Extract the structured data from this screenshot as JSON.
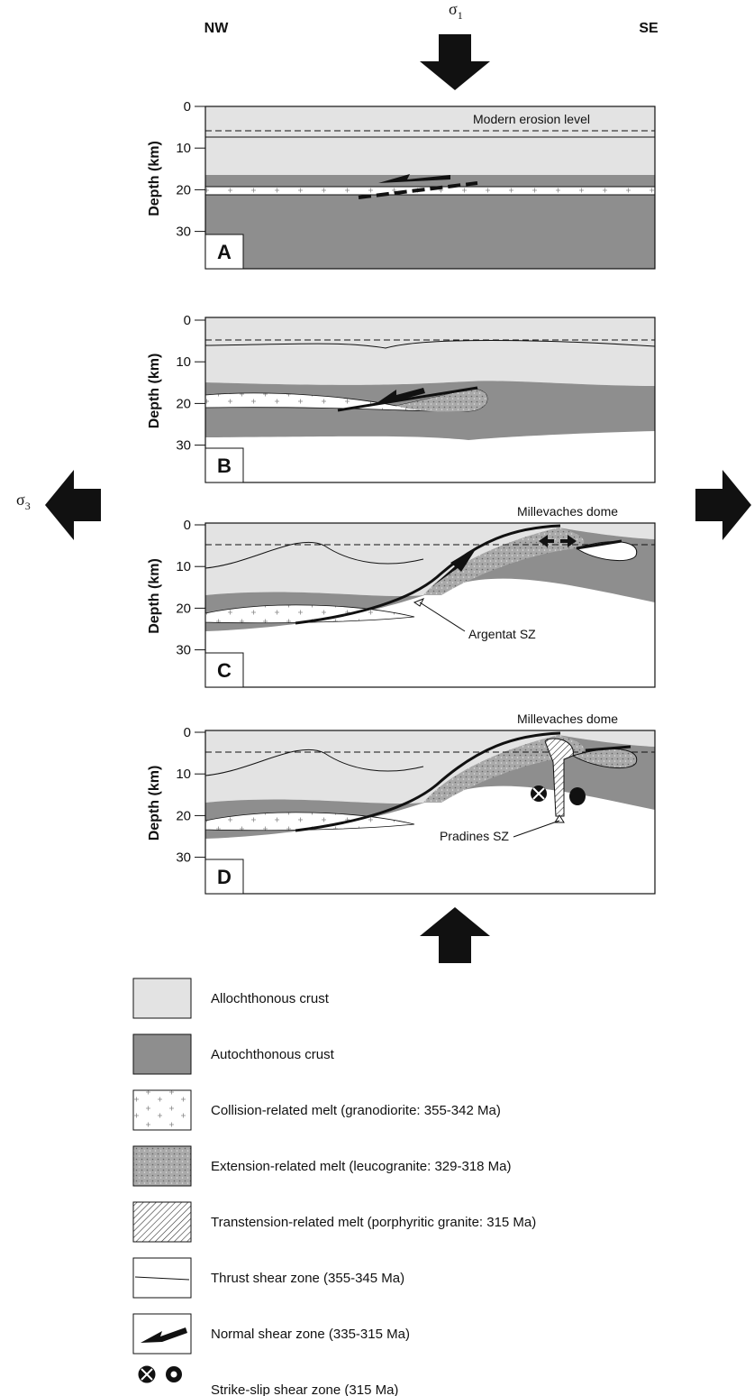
{
  "header": {
    "left": "NW",
    "right": "SE",
    "sigma1": {
      "symbol": "σ",
      "subscript": "1"
    },
    "sigma3": {
      "symbol": "σ",
      "subscript": "3"
    }
  },
  "panels": [
    {
      "label": "A",
      "y_label": "Depth (km)",
      "ticks": [
        0,
        10,
        20,
        30
      ],
      "annotations": [
        "Modern erosion level"
      ]
    },
    {
      "label": "B",
      "y_label": "Depth (km)",
      "ticks": [
        0,
        10,
        20,
        30
      ]
    },
    {
      "label": "C",
      "y_label": "Depth (km)",
      "ticks": [
        0,
        10,
        20,
        30
      ],
      "annotations": [
        "Millevaches dome",
        "Argentat SZ"
      ]
    },
    {
      "label": "D",
      "y_label": "Depth (km)",
      "ticks": [
        0,
        10,
        20,
        30
      ],
      "annotations": [
        "Millevaches dome",
        "Pradines SZ"
      ]
    }
  ],
  "legend": [
    "Allochthonous crust",
    "Autochthonous crust",
    "Collision-related melt (granodiorite: 355-342 Ma)",
    "Extension-related melt (leucogranite: 329-318 Ma)",
    "Transtension-related melt (porphyritic granite: 315 Ma)",
    "Thrust shear zone (355-345 Ma)",
    "Normal shear zone (335-315 Ma)",
    "Strike-slip shear zone (315 Ma)"
  ]
}
